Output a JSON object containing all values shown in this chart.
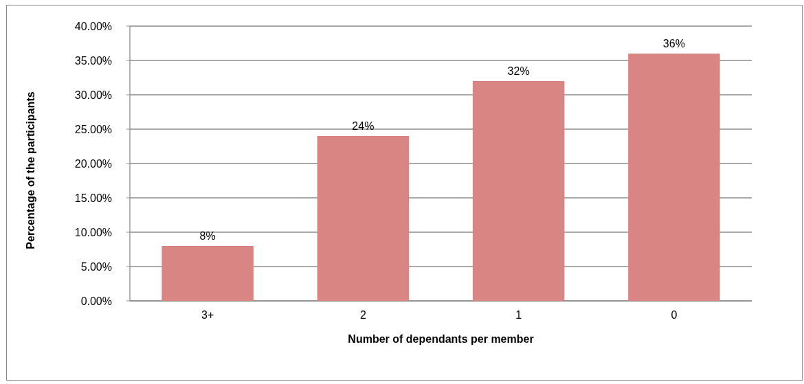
{
  "chart_data": {
    "type": "bar",
    "xlabel": "Number of dependants per member",
    "ylabel": "Percentage of the participants",
    "categories": [
      "3+",
      "2",
      "1",
      "0"
    ],
    "values": [
      8,
      24,
      32,
      36
    ],
    "value_labels": [
      "8%",
      "24%",
      "32%",
      "36%"
    ],
    "color": "#d88583",
    "ylim": [
      0,
      40
    ],
    "yticks": [
      {
        "value": 0,
        "label": "0.00%"
      },
      {
        "value": 5,
        "label": "5.00%"
      },
      {
        "value": 10,
        "label": "10.00%"
      },
      {
        "value": 15,
        "label": "15.00%"
      },
      {
        "value": 20,
        "label": "20.00%"
      },
      {
        "value": 25,
        "label": "25.00%"
      },
      {
        "value": 30,
        "label": "30.00%"
      },
      {
        "value": 35,
        "label": "35.00%"
      },
      {
        "value": 40,
        "label": "40.00%"
      }
    ],
    "grid": "y"
  }
}
